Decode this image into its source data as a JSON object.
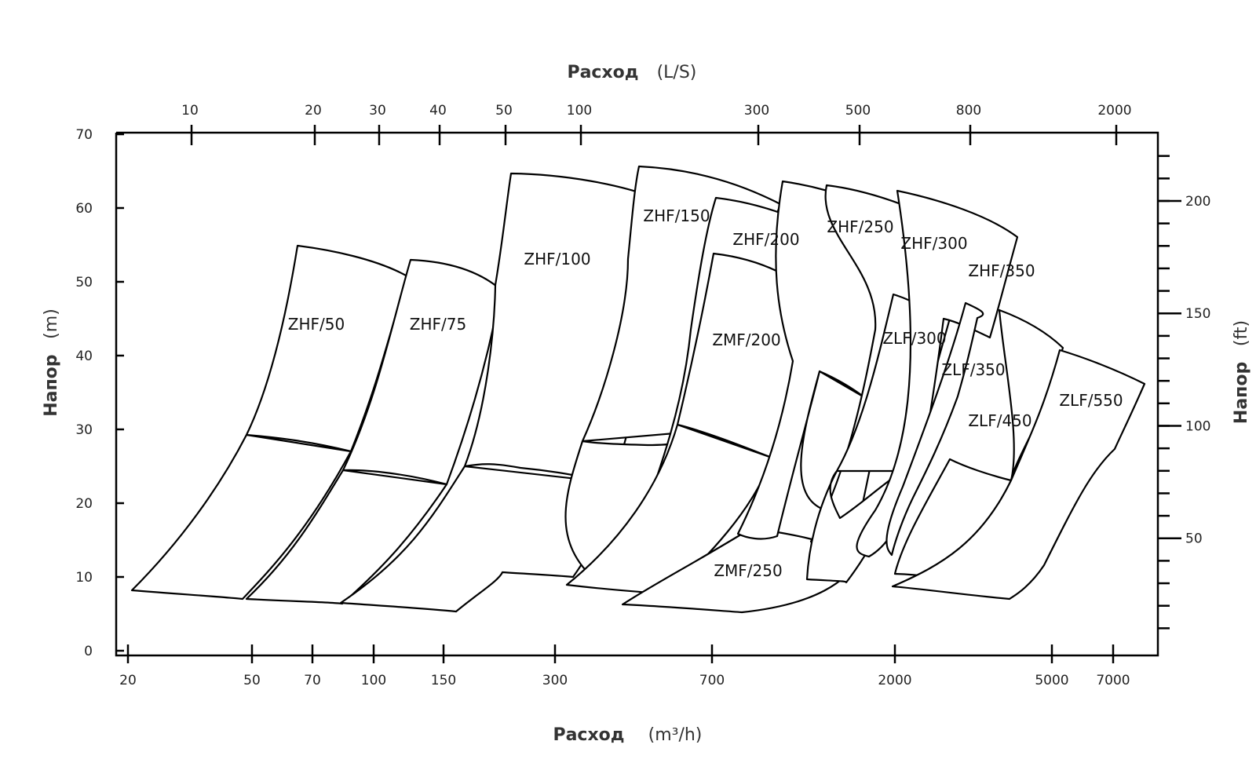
{
  "chart_data": {
    "type": "area",
    "title": "",
    "top_axis": {
      "title": "Расход",
      "unit": "(L/S)",
      "ticks": [
        "10",
        "20",
        "30",
        "40",
        "50",
        "100",
        "300",
        "500",
        "800",
        "2000"
      ]
    },
    "bottom_axis": {
      "title": "Расход",
      "unit": "(m³/h)",
      "ticks": [
        "20",
        "50",
        "70",
        "100",
        "150",
        "300",
        "700",
        "2000",
        "5000",
        "7000"
      ]
    },
    "left_axis": {
      "title": "Напор",
      "unit": "(m)",
      "ylim": [
        0,
        70
      ],
      "ticks": [
        "0",
        "10",
        "20",
        "30",
        "40",
        "50",
        "60",
        "70"
      ]
    },
    "right_axis": {
      "title": "Напор",
      "unit": "(ft)",
      "ticks": [
        "50",
        "100",
        "150",
        "200"
      ]
    },
    "regions": [
      {
        "name": "ZHF/50"
      },
      {
        "name": "ZHF/75"
      },
      {
        "name": "ZHF/100"
      },
      {
        "name": "ZHF/150"
      },
      {
        "name": "ZHF/200"
      },
      {
        "name": "ZMF/200"
      },
      {
        "name": "ZMF/250"
      },
      {
        "name": "ZHF/250"
      },
      {
        "name": "ZHF/300"
      },
      {
        "name": "ZLF/300"
      },
      {
        "name": "ZHF/350"
      },
      {
        "name": "ZLF/350"
      },
      {
        "name": "ZLF/450"
      },
      {
        "name": "ZLF/550"
      }
    ]
  }
}
